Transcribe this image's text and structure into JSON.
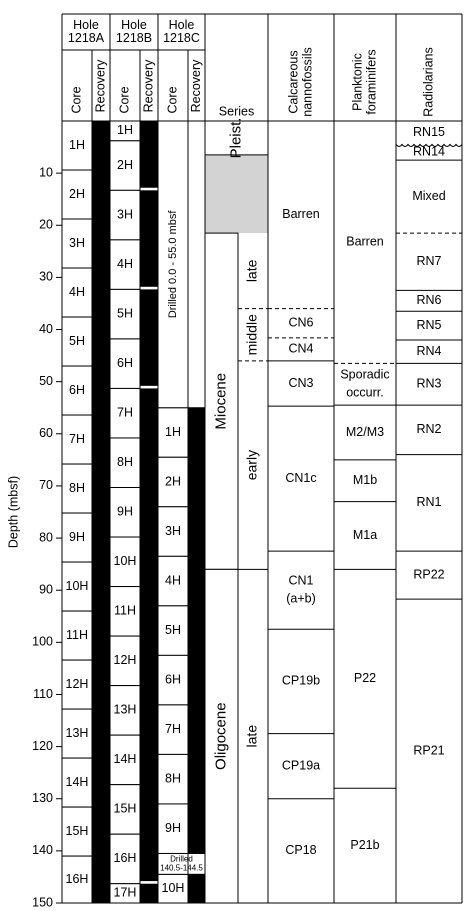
{
  "axis": {
    "title": "Depth (mbsf)",
    "ylim": [
      0,
      150
    ],
    "yticks": [
      10,
      20,
      30,
      40,
      50,
      60,
      70,
      80,
      90,
      100,
      110,
      120,
      130,
      140,
      150
    ]
  },
  "holes": [
    {
      "name": [
        "Hole",
        "1218A"
      ],
      "core_label": "Core",
      "recovery_label": "Recovery",
      "cores": [
        {
          "label": "1H",
          "top": 0,
          "bottom": 9.4
        },
        {
          "label": "2H",
          "top": 9.4,
          "bottom": 18.8
        },
        {
          "label": "3H",
          "top": 18.8,
          "bottom": 28.2
        },
        {
          "label": "4H",
          "top": 28.2,
          "bottom": 37.6
        },
        {
          "label": "5H",
          "top": 37.6,
          "bottom": 47
        },
        {
          "label": "6H",
          "top": 47,
          "bottom": 56.4
        },
        {
          "label": "7H",
          "top": 56.4,
          "bottom": 65.8
        },
        {
          "label": "8H",
          "top": 65.8,
          "bottom": 75.2
        },
        {
          "label": "9H",
          "top": 75.2,
          "bottom": 84.6
        },
        {
          "label": "10H",
          "top": 84.6,
          "bottom": 94
        },
        {
          "label": "11H",
          "top": 94,
          "bottom": 103.4
        },
        {
          "label": "12H",
          "top": 103.4,
          "bottom": 112.8
        },
        {
          "label": "13H",
          "top": 112.8,
          "bottom": 122.2
        },
        {
          "label": "14H",
          "top": 122.2,
          "bottom": 131.6
        },
        {
          "label": "15H",
          "top": 131.6,
          "bottom": 141
        },
        {
          "label": "16H",
          "top": 141,
          "bottom": 150
        }
      ],
      "recovery": [
        [
          0,
          150
        ]
      ],
      "drilled": []
    },
    {
      "name": [
        "Hole",
        "1218B"
      ],
      "core_label": "Core",
      "recovery_label": "Recovery",
      "cores": [
        {
          "label": "1H",
          "top": 0,
          "bottom": 3.8
        },
        {
          "label": "2H",
          "top": 3.8,
          "bottom": 13.3
        },
        {
          "label": "3H",
          "top": 13.3,
          "bottom": 22.8
        },
        {
          "label": "4H",
          "top": 22.8,
          "bottom": 32.3
        },
        {
          "label": "5H",
          "top": 32.3,
          "bottom": 41.8
        },
        {
          "label": "6H",
          "top": 41.8,
          "bottom": 51.3
        },
        {
          "label": "7H",
          "top": 51.3,
          "bottom": 60.8
        },
        {
          "label": "8H",
          "top": 60.8,
          "bottom": 70.3
        },
        {
          "label": "9H",
          "top": 70.3,
          "bottom": 79.8
        },
        {
          "label": "10H",
          "top": 79.8,
          "bottom": 89.3
        },
        {
          "label": "11H",
          "top": 89.3,
          "bottom": 98.8
        },
        {
          "label": "12H",
          "top": 98.8,
          "bottom": 108.3
        },
        {
          "label": "13H",
          "top": 108.3,
          "bottom": 117.8
        },
        {
          "label": "14H",
          "top": 117.8,
          "bottom": 127.3
        },
        {
          "label": "15H",
          "top": 127.3,
          "bottom": 136.8
        },
        {
          "label": "16H",
          "top": 136.8,
          "bottom": 146.3
        },
        {
          "label": "17H",
          "top": 146.3,
          "bottom": 150
        }
      ],
      "recovery": [
        [
          0,
          12.8
        ],
        [
          13.3,
          31.8
        ],
        [
          32.3,
          50.8
        ],
        [
          51.3,
          145.8
        ],
        [
          146.3,
          150
        ]
      ],
      "drilled": []
    },
    {
      "name": [
        "Hole",
        "1218C"
      ],
      "core_label": "Core",
      "recovery_label": "Recovery",
      "cores": [
        {
          "label": "1H",
          "top": 55,
          "bottom": 64.5
        },
        {
          "label": "2H",
          "top": 64.5,
          "bottom": 74
        },
        {
          "label": "3H",
          "top": 74,
          "bottom": 83.5
        },
        {
          "label": "4H",
          "top": 83.5,
          "bottom": 93
        },
        {
          "label": "5H",
          "top": 93,
          "bottom": 102.5
        },
        {
          "label": "6H",
          "top": 102.5,
          "bottom": 112
        },
        {
          "label": "7H",
          "top": 112,
          "bottom": 121.5
        },
        {
          "label": "8H",
          "top": 121.5,
          "bottom": 131
        },
        {
          "label": "9H",
          "top": 131,
          "bottom": 140.5
        },
        {
          "label": "10H",
          "top": 144.5,
          "bottom": 150
        }
      ],
      "recovery": [
        [
          55,
          140.5
        ],
        [
          144.5,
          150
        ]
      ],
      "drilled": [
        {
          "label": [
            "Drilled 0.0 - 55.0 mbsf"
          ],
          "top": 0,
          "bottom": 55
        },
        {
          "label": [
            "Drilled",
            "140.5-144.5"
          ],
          "top": 140.5,
          "bottom": 144.5
        }
      ]
    }
  ],
  "series": {
    "label": "Series",
    "no_recovery": {
      "top": 6.5,
      "bottom": 21.5,
      "color": "#d3d3d3"
    },
    "units": [
      {
        "label": "Pleist.",
        "top": 0,
        "bottom": 6.5
      },
      {
        "label": "Miocene",
        "top": 21.5,
        "bottom": 86
      },
      {
        "label": "Oligocene",
        "top": 86,
        "bottom": 150
      }
    ],
    "subunits": [
      {
        "label": "late",
        "top": 21.5,
        "bottom": 36,
        "base": "dashed"
      },
      {
        "label": "middle",
        "top": 36,
        "bottom": 46,
        "base": "dashed"
      },
      {
        "label": "early",
        "top": 46,
        "bottom": 86,
        "base": "solid"
      },
      {
        "label": "late",
        "top": 86,
        "bottom": 150,
        "base": "solid"
      }
    ]
  },
  "zones": [
    {
      "label": [
        "Calcareous",
        "nannofossils"
      ],
      "units": [
        {
          "label": [
            "Barren"
          ],
          "top": 0,
          "bottom": 36,
          "base": "dashed"
        },
        {
          "label": [
            "CN6"
          ],
          "top": 36,
          "bottom": 41.6,
          "base": "dashed"
        },
        {
          "label": [
            "CN4"
          ],
          "top": 41.6,
          "bottom": 46,
          "base": "solid"
        },
        {
          "label": [
            "CN3"
          ],
          "top": 46,
          "bottom": 54.7,
          "base": "solid"
        },
        {
          "label": [
            "CN1c"
          ],
          "top": 54.7,
          "bottom": 82.5,
          "base": "solid"
        },
        {
          "label": [
            "CN1",
            "(a+b)"
          ],
          "top": 82.5,
          "bottom": 97.5,
          "base": "solid"
        },
        {
          "label": [
            "CP19b"
          ],
          "top": 97.5,
          "bottom": 117.5,
          "base": "solid"
        },
        {
          "label": [
            "CP19a"
          ],
          "top": 117.5,
          "bottom": 130,
          "base": "solid"
        },
        {
          "label": [
            "CP18"
          ],
          "top": 130,
          "bottom": 150,
          "base": "solid"
        }
      ]
    },
    {
      "label": [
        "Planktonic",
        "foraminifers"
      ],
      "units": [
        {
          "label": [
            "Barren"
          ],
          "top": 0,
          "bottom": 46.5,
          "base": "dashed"
        },
        {
          "label": [
            "Sporadic",
            "occurr."
          ],
          "top": 46.5,
          "bottom": 54.5,
          "base": "solid"
        },
        {
          "label": [
            "M2/M3"
          ],
          "top": 54.5,
          "bottom": 65,
          "base": "solid"
        },
        {
          "label": [
            "M1b"
          ],
          "top": 65,
          "bottom": 73,
          "base": "solid"
        },
        {
          "label": [
            "M1a"
          ],
          "top": 73,
          "bottom": 86,
          "base": "solid"
        },
        {
          "label": [
            "P22"
          ],
          "top": 86,
          "bottom": 128,
          "base": "solid"
        },
        {
          "label": [
            "P21b"
          ],
          "top": 128,
          "bottom": 150,
          "base": "solid"
        }
      ]
    },
    {
      "label": [
        "Radiolarians"
      ],
      "units": [
        {
          "label": [
            "RN15"
          ],
          "top": 0,
          "bottom": 4.5,
          "base": "wavy"
        },
        {
          "label": [
            "RN14"
          ],
          "top": 4.5,
          "bottom": 7.5,
          "base": "solid"
        },
        {
          "label": [
            "Mixed"
          ],
          "top": 7.5,
          "bottom": 21.5,
          "base": "dashed"
        },
        {
          "label": [
            "RN7"
          ],
          "top": 21.5,
          "bottom": 32.5,
          "base": "solid"
        },
        {
          "label": [
            "RN6"
          ],
          "top": 32.5,
          "bottom": 36.5,
          "base": "solid"
        },
        {
          "label": [
            "RN5"
          ],
          "top": 36.5,
          "bottom": 42,
          "base": "solid"
        },
        {
          "label": [
            "RN4"
          ],
          "top": 42,
          "bottom": 46.5,
          "base": "solid"
        },
        {
          "label": [
            "RN3"
          ],
          "top": 46.5,
          "bottom": 54.5,
          "base": "solid"
        },
        {
          "label": [
            "RN2"
          ],
          "top": 54.5,
          "bottom": 64,
          "base": "solid"
        },
        {
          "label": [
            "RN1"
          ],
          "top": 64,
          "bottom": 82.5,
          "base": "solid"
        },
        {
          "label": [
            "RP22"
          ],
          "top": 82.5,
          "bottom": 91.7,
          "base": "solid"
        },
        {
          "label": [
            "RP21"
          ],
          "top": 91.7,
          "bottom": 150,
          "base": "solid"
        }
      ]
    }
  ]
}
